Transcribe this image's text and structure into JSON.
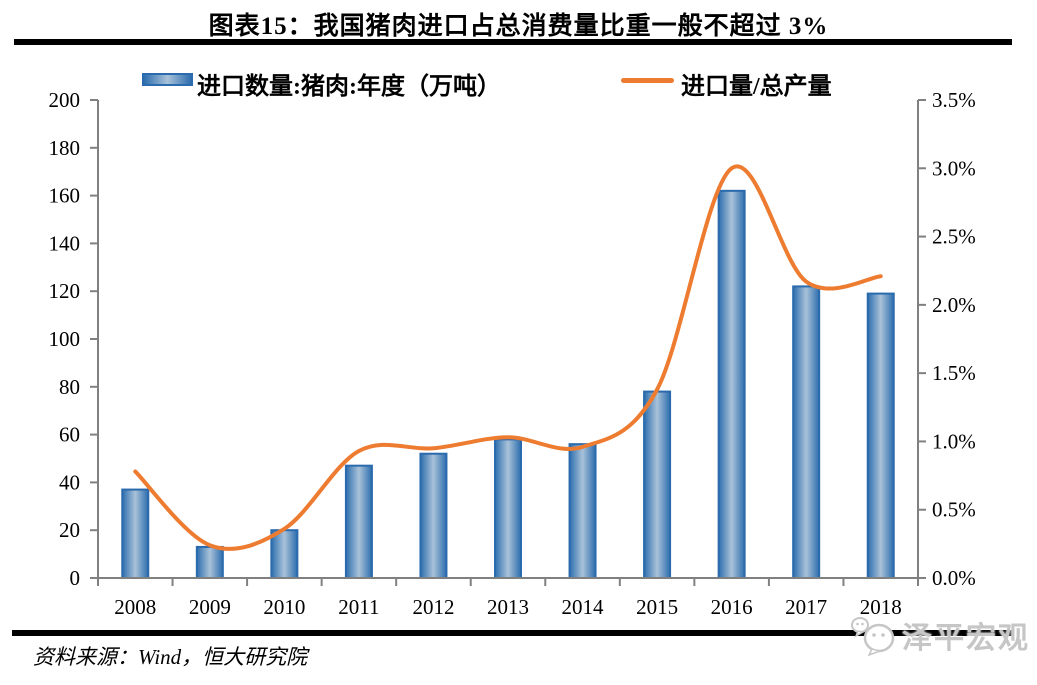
{
  "title": "图表15：我国猪肉进口占总消费量比重一般不超过 3%",
  "legend": {
    "bar_label": "进口数量:猪肉:年度（万吨）",
    "line_label": "进口量/总产量"
  },
  "source": "资料来源：Wind，恒大研究院",
  "watermark": "泽平宏观",
  "colors": {
    "bar_border": "#2a6aad",
    "bar_edge": "#2d6eae",
    "bar_center": "#a9c2d9",
    "line": "#ED7C31",
    "axis": "#808080",
    "divider": "#000000",
    "watermark_gray": "#c6c6c6"
  },
  "chart_data": {
    "type": "bar",
    "subtype": "combo-bar-line",
    "title": "图表15：我国猪肉进口占总消费量比重一般不超过 3%",
    "categories": [
      "2008",
      "2009",
      "2010",
      "2011",
      "2012",
      "2013",
      "2014",
      "2015",
      "2016",
      "2017",
      "2018"
    ],
    "series": [
      {
        "name": "进口数量:猪肉:年度（万吨）",
        "type": "bar",
        "axis": "left",
        "values": [
          37,
          13,
          20,
          47,
          52,
          58,
          56,
          78,
          162,
          122,
          119
        ]
      },
      {
        "name": "进口量/总产量",
        "type": "line",
        "axis": "right",
        "values_percent": [
          0.78,
          0.24,
          0.36,
          0.93,
          0.95,
          1.03,
          0.96,
          1.38,
          3.0,
          2.17,
          2.21
        ]
      }
    ],
    "left_axis": {
      "min": 0,
      "max": 200,
      "step": 20,
      "tick_labels_top_down": [
        "200",
        "180",
        "160",
        "140",
        "120",
        "100",
        "80",
        "60",
        "40",
        "20",
        "0"
      ]
    },
    "right_axis": {
      "min": 0,
      "max": 3.5,
      "step": 0.5,
      "tick_labels_top_down": [
        "3.5%",
        "3.0%",
        "2.5%",
        "2.0%",
        "1.5%",
        "1.0%",
        "0.5%",
        "0.0%"
      ]
    },
    "grid": false,
    "legend_position": "top",
    "line_smooth": true
  }
}
